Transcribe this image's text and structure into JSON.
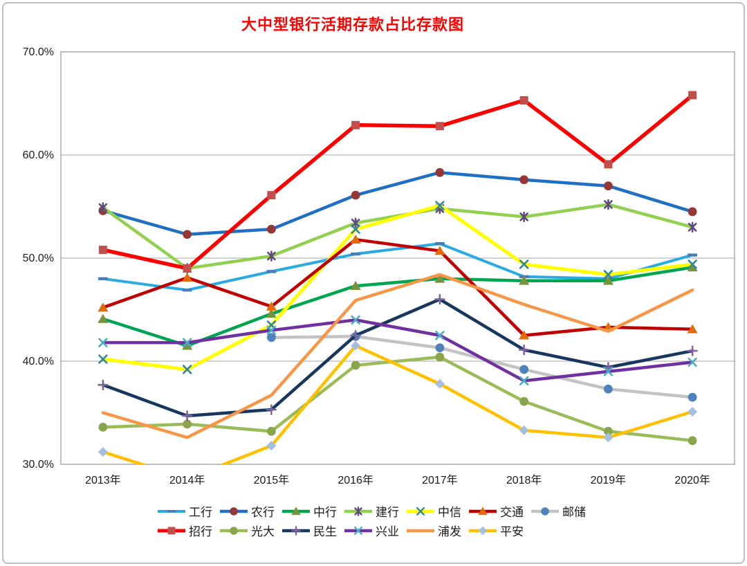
{
  "chart_data": {
    "type": "line",
    "title": "大中型银行活期存款占比存款图",
    "title_color": "#FF0000",
    "categories": [
      "2013年",
      "2014年",
      "2015年",
      "2016年",
      "2017年",
      "2018年",
      "2019年",
      "2020年"
    ],
    "y_axis": {
      "labels": [
        "70.0%",
        "60.0%",
        "50.0%",
        "40.0%",
        "30.0%"
      ],
      "min": 30,
      "max": 70,
      "step": 10,
      "format": "percent"
    },
    "grid": "horizontal",
    "legend_position": "bottom",
    "legend_row_break": 7,
    "series": [
      {
        "key": "icbc",
        "name": "工行",
        "color": "#29ABE2",
        "marker": "dash",
        "marker_color": "#4A7EBB",
        "width": 4,
        "values": [
          48.0,
          46.9,
          48.7,
          50.4,
          51.4,
          48.2,
          48.0,
          50.3
        ]
      },
      {
        "key": "abc",
        "name": "农行",
        "color": "#1F6FC5",
        "marker": "circle",
        "marker_color": "#953735",
        "width": 4.5,
        "values": [
          54.6,
          52.3,
          52.8,
          56.1,
          58.3,
          57.6,
          57.0,
          54.5
        ]
      },
      {
        "key": "boc",
        "name": "中行",
        "color": "#00A550",
        "marker": "triangle",
        "marker_color": "#77933C",
        "width": 4.5,
        "values": [
          44.1,
          41.5,
          44.6,
          47.3,
          48.0,
          47.8,
          47.8,
          49.1
        ]
      },
      {
        "key": "ccb",
        "name": "建行",
        "color": "#92D050",
        "marker": "asterisk",
        "marker_color": "#604A7B",
        "width": 4.5,
        "values": [
          54.9,
          49.0,
          50.2,
          53.4,
          54.8,
          54.0,
          55.2,
          53.0
        ]
      },
      {
        "key": "citic",
        "name": "中信",
        "color": "#FFFF00",
        "marker": "x",
        "marker_color": "#31859C",
        "width": 5,
        "values": [
          40.2,
          39.2,
          43.5,
          52.8,
          55.1,
          49.4,
          48.4,
          49.4
        ]
      },
      {
        "key": "bocom",
        "name": "交通",
        "color": "#C00000",
        "marker": "triangle",
        "marker_color": "#E26B0A",
        "width": 4.5,
        "values": [
          45.2,
          48.1,
          45.3,
          51.8,
          50.7,
          42.5,
          43.3,
          43.1
        ]
      },
      {
        "key": "psbc",
        "name": "邮储",
        "color": "#C3C3C3",
        "marker": "circle",
        "marker_color": "#4F81BD",
        "width": 4.5,
        "values": [
          null,
          null,
          42.3,
          42.4,
          41.3,
          39.2,
          37.3,
          36.5
        ]
      },
      {
        "key": "cmb",
        "name": "招行",
        "color": "#FF0000",
        "marker": "square",
        "marker_color": "#C0504D",
        "width": 5.5,
        "values": [
          50.8,
          49.0,
          56.1,
          62.9,
          62.8,
          65.3,
          59.1,
          65.8
        ]
      },
      {
        "key": "ceb",
        "name": "光大",
        "color": "#9BBB59",
        "marker": "circle",
        "marker_color": "#89A54E",
        "width": 4.5,
        "values": [
          33.6,
          33.9,
          33.2,
          39.6,
          40.4,
          36.1,
          33.2,
          32.3
        ]
      },
      {
        "key": "minsheng",
        "name": "民生",
        "color": "#17375E",
        "marker": "plus",
        "marker_color": "#8064A2",
        "width": 4.5,
        "values": [
          37.7,
          34.7,
          35.3,
          42.5,
          46.0,
          41.1,
          39.4,
          41.0
        ]
      },
      {
        "key": "cib",
        "name": "兴业",
        "color": "#7030A0",
        "marker": "x",
        "marker_color": "#4BACC6",
        "width": 4.5,
        "values": [
          41.8,
          41.8,
          43.0,
          44.0,
          42.5,
          38.1,
          39.0,
          39.9
        ]
      },
      {
        "key": "spdb",
        "name": "浦发",
        "color": "#F79646",
        "marker": "none",
        "marker_color": "#F79646",
        "width": 4.5,
        "values": [
          35.0,
          32.6,
          36.7,
          45.9,
          48.4,
          45.5,
          42.9,
          46.9
        ]
      },
      {
        "key": "pingan",
        "name": "平安",
        "color": "#FFC000",
        "marker": "diamond",
        "marker_color": "#A7BFDE",
        "width": 4.5,
        "values": [
          31.2,
          28.6,
          31.8,
          41.5,
          37.8,
          33.3,
          32.6,
          35.1
        ]
      }
    ]
  }
}
